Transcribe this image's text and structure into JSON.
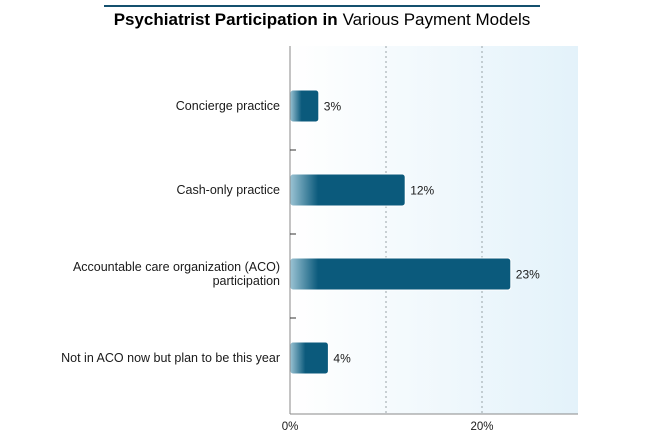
{
  "chart_data": {
    "type": "bar",
    "orientation": "horizontal",
    "title_bold": "Psychiatrist Participation in",
    "title_regular": "Various Payment Models",
    "categories": [
      [
        "Concierge practice"
      ],
      [
        "Cash-only practice"
      ],
      [
        "Accountable care organization (ACO)",
        "participation"
      ],
      [
        "Not in ACO now but plan to be this year"
      ]
    ],
    "values": [
      3,
      12,
      23,
      4
    ],
    "value_labels": [
      "3%",
      "12%",
      "23%",
      "4%"
    ],
    "xlim": [
      0,
      30
    ],
    "x_ticks": [
      0,
      20
    ],
    "x_tick_labels": [
      "0%",
      "20%"
    ],
    "x_gridlines": [
      10,
      20
    ],
    "grid": true,
    "legend": "none",
    "colors": {
      "bar_dark": "#0b5a7c",
      "bar_light": "#9cc4d4",
      "plot_bg_left": "#ffffff",
      "plot_bg_right": "#e3f2fa",
      "title_rule": "#14506e",
      "axis": "#8a8a8a",
      "grid": "#9aa4a8"
    }
  }
}
